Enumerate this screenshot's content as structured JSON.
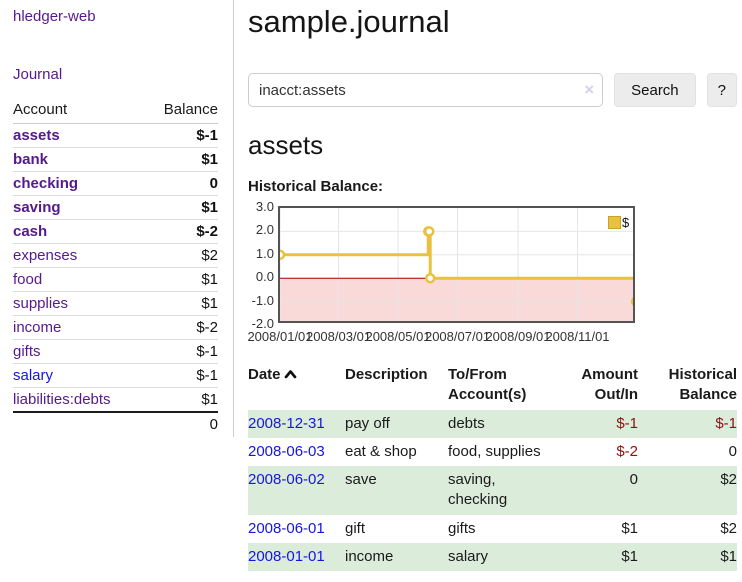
{
  "sidebar": {
    "brand": "hledger-web",
    "nav": {
      "journal": "Journal"
    },
    "accounts": {
      "headers": {
        "account": "Account",
        "balance": "Balance"
      },
      "rows": [
        {
          "account": "assets",
          "balance": "$-1"
        },
        {
          "account": "bank",
          "balance": "$1"
        },
        {
          "account": "checking",
          "balance": "0"
        },
        {
          "account": "saving",
          "balance": "$1"
        },
        {
          "account": "cash",
          "balance": "$-2"
        },
        {
          "account": "expenses",
          "balance": "$2"
        },
        {
          "account": "food",
          "balance": "$1"
        },
        {
          "account": "supplies",
          "balance": "$1"
        },
        {
          "account": "income",
          "balance": "$-2"
        },
        {
          "account": "gifts",
          "balance": "$-1"
        },
        {
          "account": "salary",
          "balance": "$-1"
        },
        {
          "account": "liabilities:debts",
          "balance": "$1"
        }
      ],
      "total": "0"
    }
  },
  "main": {
    "title": "sample.journal",
    "search": {
      "value": "inacct:assets",
      "clear_icon": "×",
      "button": "Search",
      "help_button": "?"
    },
    "account_heading": "assets",
    "chart_heading": "Historical Balance:",
    "register": {
      "headers": {
        "date": "Date",
        "description": "Description",
        "accounts1": "To/From",
        "accounts2": "Account(s)",
        "amount1": "Amount",
        "amount2": "Out/In",
        "balance1": "Historical",
        "balance2": "Balance"
      },
      "rows": [
        {
          "date": "2008-12-31",
          "description": "pay off",
          "accounts": "debts",
          "amount": "$-1",
          "balance": "$-1"
        },
        {
          "date": "2008-06-03",
          "description": "eat & shop",
          "accounts": "food, supplies",
          "amount": "$-2",
          "balance": "0"
        },
        {
          "date": "2008-06-02",
          "description": "save",
          "accounts": "saving, checking",
          "amount": "0",
          "balance": "$2"
        },
        {
          "date": "2008-06-01",
          "description": "gift",
          "accounts": "gifts",
          "amount": "$1",
          "balance": "$2"
        },
        {
          "date": "2008-01-01",
          "description": "income",
          "accounts": "salary",
          "amount": "$1",
          "balance": "$1"
        }
      ]
    }
  },
  "chart_data": {
    "type": "line",
    "step": true,
    "title": "Historical Balance:",
    "series": [
      {
        "name": "$",
        "color": "#e8c23f",
        "points": [
          [
            "2008-01-01",
            1
          ],
          [
            "2008-06-01",
            2
          ],
          [
            "2008-06-02",
            2
          ],
          [
            "2008-06-03",
            0
          ],
          [
            "2008-12-31",
            -1
          ]
        ]
      }
    ],
    "xlim": [
      "2008-01-01",
      "2009-01-01"
    ],
    "ylim": [
      -2,
      3
    ],
    "y_ticks": [
      3,
      2,
      1,
      0,
      -1,
      -2
    ],
    "x_tick_dates": [
      "2008-01-01",
      "2008-03-01",
      "2008-05-01",
      "2008-07-01",
      "2008-09-01",
      "2008-11-01"
    ],
    "x_tick_labels": [
      "2008/01/01",
      "2008/03/01",
      "2008/05/01",
      "2008/07/01",
      "2008/09/01",
      "2008/11/01"
    ],
    "legend": {
      "label": "$",
      "position": "top-right"
    },
    "grid": true,
    "colors": {
      "negative_region": "#fad9d9",
      "zero_line": "#a40000",
      "grid": "#e6e6e6",
      "border": "#545454"
    }
  }
}
